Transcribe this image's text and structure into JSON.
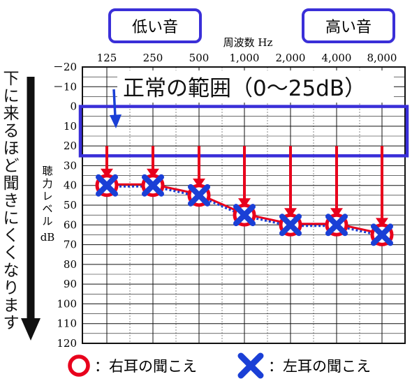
{
  "chart_data": {
    "type": "line",
    "title": "",
    "xlabel": "周波数 Hz",
    "ylabel": "聴力レベル dB",
    "x_categories": [
      "125",
      "250",
      "500",
      "1,000",
      "2,000",
      "4,000",
      "8,000"
    ],
    "y_ticks": [
      "－20",
      "－10",
      "0",
      "10",
      "20",
      "30",
      "40",
      "50",
      "60",
      "70",
      "80",
      "90",
      "100",
      "110",
      "120"
    ],
    "ylim": [
      -20,
      120
    ],
    "y_inverted": true,
    "grid": true,
    "legend_position": "bottom",
    "series": [
      {
        "name": "右耳の聞こえ",
        "marker": "circle",
        "color": "#e8001c",
        "values": [
          40,
          40,
          45,
          55,
          60,
          60,
          65
        ]
      },
      {
        "name": "左耳の聞こえ",
        "marker": "cross",
        "color": "#1a3fd6",
        "values": [
          40,
          40,
          45,
          55,
          60,
          60,
          65
        ]
      }
    ],
    "normal_range": {
      "label": "正常の範囲（0〜25dB）",
      "from": 0,
      "to": 25,
      "color": "#3a2fd8"
    },
    "annotations": {
      "low_tone": "低い音",
      "high_tone": "高い音",
      "side_note": "下に来るほど聞きにくくなります"
    }
  },
  "legend": {
    "right_ear": "：右耳の聞こえ",
    "left_ear": "：左耳の聞こえ"
  },
  "colors": {
    "red": "#e8001c",
    "blue": "#1a3fd6",
    "box_blue": "#3a2fd8",
    "arrow_black": "#111111"
  }
}
